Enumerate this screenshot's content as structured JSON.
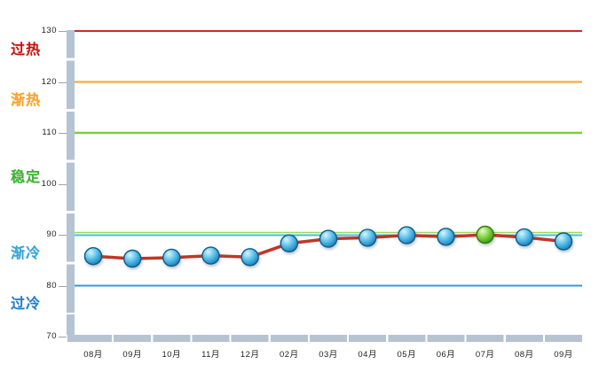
{
  "chart_data": {
    "type": "line",
    "categories": [
      "08月",
      "09月",
      "10月",
      "11月",
      "12月",
      "02月",
      "03月",
      "04月",
      "05月",
      "06月",
      "07月",
      "08月",
      "09月"
    ],
    "values": [
      85.8,
      85.3,
      85.5,
      85.9,
      85.6,
      88.3,
      89.2,
      89.4,
      89.9,
      89.6,
      90.0,
      89.5,
      88.7
    ],
    "highlight_index": 10,
    "y_axis": {
      "ticks": [
        130,
        120,
        110,
        100,
        90,
        80,
        70
      ],
      "range": [
        70,
        130
      ]
    },
    "zones": [
      {
        "label": "过热",
        "range": [
          120,
          130
        ],
        "color": "#cc0f0f"
      },
      {
        "label": "渐热",
        "range": [
          110,
          120
        ],
        "color": "#ffa41c"
      },
      {
        "label": "稳定",
        "range": [
          90,
          110
        ],
        "color": "#3cb531"
      },
      {
        "label": "渐冷",
        "range": [
          80,
          90
        ],
        "color": "#2ba6e0"
      },
      {
        "label": "过冷",
        "range": [
          70,
          80
        ],
        "color": "#1b7fd2"
      }
    ],
    "boundary_lines": [
      {
        "value": 130,
        "color": "#d02b22",
        "width": 2,
        "dy": 0
      },
      {
        "value": 120,
        "color": "#f6b054",
        "width": 2.5,
        "dy": 0
      },
      {
        "value": 110,
        "color": "#7ccd3e",
        "width": 2.5,
        "dy": 0
      },
      {
        "value": 90,
        "color": "#a3d55f",
        "width": 1.5,
        "dy": -2.5
      },
      {
        "value": 90,
        "color": "#41c3d9",
        "width": 2,
        "dy": 0.5
      },
      {
        "value": 80,
        "color": "#3e96d2",
        "width": 2,
        "dy": 0
      }
    ],
    "line_color": "#c23529",
    "marker_blue": {
      "highlight": "#d9f4fd",
      "mid": "#62c5ec",
      "dark": "#1176b2",
      "stroke": "#0e5c8d"
    },
    "marker_green": {
      "highlight": "#e8f9cf",
      "mid": "#8bd64c",
      "dark": "#349007",
      "stroke": "#2e7d0a"
    },
    "legend": null
  }
}
